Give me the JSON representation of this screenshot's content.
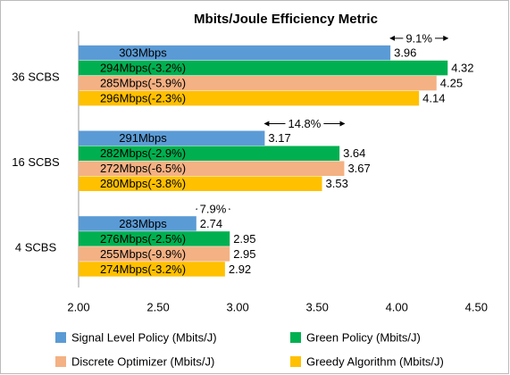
{
  "chart_data": {
    "type": "hbar",
    "title": "Mbits/Joule Efficiency Metric",
    "categories": [
      "36 SCBS",
      "16 SCBS",
      "4 SCBS"
    ],
    "series": [
      {
        "name": "Signal Level Policy (Mbits/J)",
        "color": "#5b9bd5",
        "values": [
          3.96,
          3.17,
          2.74
        ],
        "bar_labels": [
          "303Mbps",
          "291Mbps",
          "283Mbps"
        ]
      },
      {
        "name": "Green Policy  (Mbits/J)",
        "color": "#00b050",
        "values": [
          4.32,
          3.64,
          2.95
        ],
        "bar_labels": [
          "294Mbps(-3.2%)",
          "282Mbps(-2.9%)",
          "276Mbps(-2.5%)"
        ]
      },
      {
        "name": "Discrete Optimizer  (Mbits/J)",
        "color": "#f4b183",
        "values": [
          4.25,
          3.67,
          2.95
        ],
        "bar_labels": [
          "285Mbps(-5.9%)",
          "272Mbps(-6.5%)",
          "255Mbps(-9.9%)"
        ]
      },
      {
        "name": "Greedy Algorithm (Mbits/J)",
        "color": "#ffc000",
        "values": [
          4.14,
          3.53,
          2.92
        ],
        "bar_labels": [
          "296Mbps(-2.3%)",
          "280Mbps(-3.8%)",
          "274Mbps(-3.2%)"
        ]
      }
    ],
    "group_annotations": [
      "9.1%",
      "14.8%",
      "7.9%"
    ],
    "xlim": [
      2.0,
      4.65
    ],
    "xticks": [
      {
        "value": 2.0,
        "label": "2.00"
      },
      {
        "value": 2.5,
        "label": "2.50"
      },
      {
        "value": 3.0,
        "label": "3.00"
      },
      {
        "value": 3.5,
        "label": "3.50"
      },
      {
        "value": 4.0,
        "label": "4.00"
      },
      {
        "value": 4.5,
        "label": "4.50"
      }
    ],
    "grid": false,
    "legend": "bottom"
  }
}
